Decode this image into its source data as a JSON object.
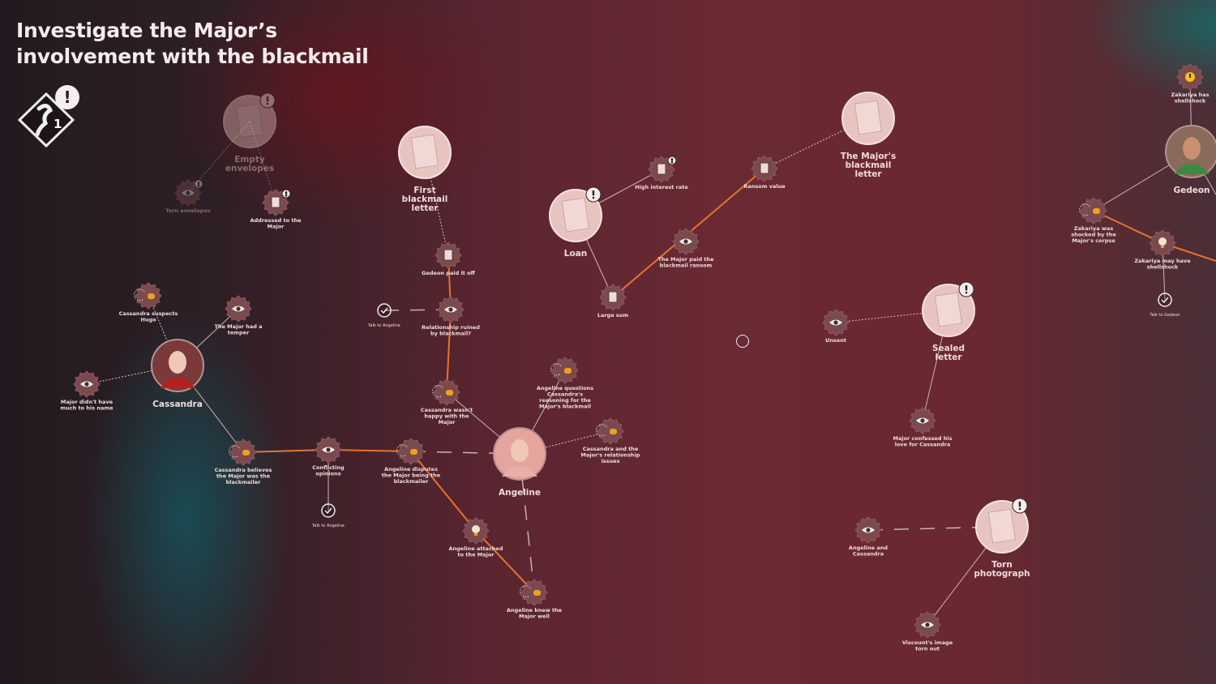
{
  "objective": {
    "title_line1": "Investigate the Major’s",
    "title_line2": "involvement with the blackmail",
    "chain_count": "1",
    "alert": "!"
  },
  "colors": {
    "accent_line": "#e8732c",
    "node_gear": "#7a4a4e",
    "chat_icon": "#f0a020",
    "label": "#f1dcdc"
  },
  "evidence": [
    {
      "id": "env",
      "label": [
        "Empty",
        "envelopes"
      ],
      "alert": true,
      "faded": true
    },
    {
      "id": "fbl",
      "label": [
        "First",
        "blackmail",
        "letter"
      ]
    },
    {
      "id": "loan",
      "label": [
        "Loan"
      ],
      "alert": true
    },
    {
      "id": "mbl",
      "label": [
        "The Major's",
        "blackmail",
        "letter"
      ]
    },
    {
      "id": "seal",
      "label": [
        "Sealed",
        "letter"
      ],
      "alert": true
    },
    {
      "id": "photo",
      "label": [
        "Torn",
        "photograph"
      ],
      "alert": true
    }
  ],
  "characters": [
    {
      "id": "cass",
      "label": "Cassandra"
    },
    {
      "id": "ang",
      "label": "Angeline"
    },
    {
      "id": "ged",
      "label": "Gedeon"
    }
  ],
  "clues": [
    {
      "id": "torn",
      "icon": "eye-icon",
      "label": [
        "Torn envelopes"
      ],
      "alert": true,
      "faded": true
    },
    {
      "id": "addr",
      "icon": "document-icon",
      "label": [
        "Addressed to the",
        "Major"
      ],
      "alert": true
    },
    {
      "id": "gpaid",
      "icon": "portrait-icon",
      "label": [
        "Gedeon paid it off"
      ]
    },
    {
      "id": "rel",
      "icon": "eye-icon",
      "label": [
        "Relationship ruined",
        "by blackmail?"
      ]
    },
    {
      "id": "hugo",
      "icon": "chat-icon",
      "label": [
        "Cassandra suspects",
        "Hugo"
      ]
    },
    {
      "id": "temper",
      "icon": "eye-icon",
      "label": [
        "The Major had a",
        "temper"
      ]
    },
    {
      "id": "name",
      "icon": "eye-icon",
      "label": [
        "Major didn't have",
        "much to his name"
      ]
    },
    {
      "id": "unhappy",
      "icon": "chat-icon",
      "label": [
        "Cassandra wasn't",
        "happy with the",
        "Major"
      ]
    },
    {
      "id": "quest",
      "icon": "chat-icon",
      "label": [
        "Angeline questions",
        "Cassandra's",
        "reasoning for the",
        "Major's blackmail"
      ]
    },
    {
      "id": "issues",
      "icon": "chat-icon",
      "label": [
        "Cassandra and the",
        "Major's relationship",
        "issues"
      ]
    },
    {
      "id": "believes",
      "icon": "chat-icon",
      "label": [
        "Cassandra believes",
        "the Major was the",
        "blackmailer"
      ]
    },
    {
      "id": "conflict",
      "icon": "eye-icon",
      "label": [
        "Conflicting",
        "opinions"
      ]
    },
    {
      "id": "disputes",
      "icon": "chat-icon",
      "label": [
        "Angeline disputes",
        "the Major being the",
        "blackmailer"
      ]
    },
    {
      "id": "attached",
      "icon": "bulb-icon",
      "label": [
        "Angeline attached",
        "to the Major"
      ]
    },
    {
      "id": "knew",
      "icon": "chat-icon",
      "label": [
        "Angeline knew the",
        "Major well"
      ]
    },
    {
      "id": "rate",
      "icon": "document-icon",
      "label": [
        "High interest rate"
      ],
      "alert": true
    },
    {
      "id": "ransom",
      "icon": "document-icon",
      "label": [
        "Ransom value"
      ]
    },
    {
      "id": "paid",
      "icon": "eye-icon",
      "label": [
        "The Major paid the",
        "blackmail ransom"
      ]
    },
    {
      "id": "sum",
      "icon": "document-icon",
      "label": [
        "Large sum"
      ]
    },
    {
      "id": "unsent",
      "icon": "eye-icon",
      "label": [
        "Unsent"
      ]
    },
    {
      "id": "love",
      "icon": "eye-icon",
      "label": [
        "Major confessed his",
        "love for Cassandra"
      ]
    },
    {
      "id": "angcass",
      "icon": "eye-icon",
      "label": [
        "Angeline and",
        "Cassandra"
      ]
    },
    {
      "id": "visc",
      "icon": "eye-icon",
      "label": [
        "Viscount's image",
        "torn out"
      ]
    },
    {
      "id": "zshell",
      "icon": "alert-icon",
      "label": [
        "Zakariya has",
        "shellshock"
      ]
    },
    {
      "id": "zshock",
      "icon": "chat-icon",
      "label": [
        "Zakariya was",
        "shocked by the",
        "Major's corpse"
      ]
    },
    {
      "id": "zmay",
      "icon": "bulb-icon",
      "label": [
        "Zakariya may have",
        "shellshock"
      ]
    }
  ],
  "actions": [
    {
      "id": "talk1",
      "label": "Talk to Angeline"
    },
    {
      "id": "talk2",
      "label": "Talk to Angeline"
    },
    {
      "id": "talk3",
      "label": "Talk to Gedeon"
    }
  ]
}
